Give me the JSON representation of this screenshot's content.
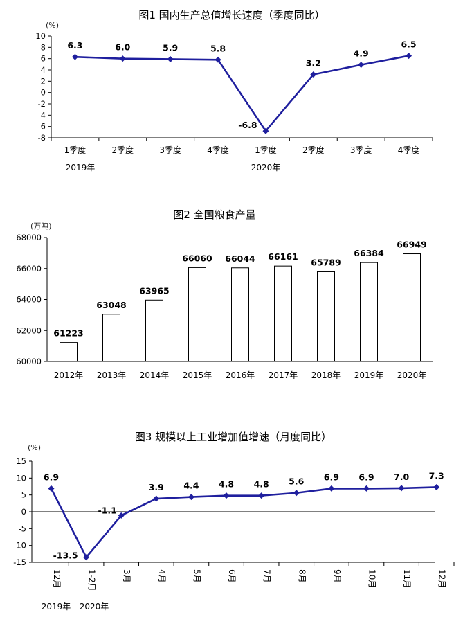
{
  "chart_data": [
    {
      "type": "line",
      "title": "图1   国内生产总值增长速度（季度同比）",
      "unit": "(%)",
      "categories": [
        "1季度",
        "2季度",
        "3季度",
        "4季度",
        "1季度",
        "2季度",
        "3季度",
        "4季度"
      ],
      "year_labels": [
        "2019年",
        "2020年"
      ],
      "values": [
        6.3,
        6.0,
        5.9,
        5.8,
        -6.8,
        3.2,
        4.9,
        6.5
      ],
      "value_labels": [
        "6.3",
        "6.0",
        "5.9",
        "5.8",
        "-6.8",
        "3.2",
        "4.9",
        "6.5"
      ],
      "ylim": [
        -8,
        10
      ],
      "yticks": [
        10,
        8,
        6,
        4,
        2,
        0,
        -2,
        -4,
        -6,
        -8
      ],
      "color": "#1f1f9e"
    },
    {
      "type": "bar",
      "title": "图2   全国粮食产量",
      "unit": "(万吨)",
      "categories": [
        "2012年",
        "2013年",
        "2014年",
        "2015年",
        "2016年",
        "2017年",
        "2018年",
        "2019年",
        "2020年"
      ],
      "values": [
        61223,
        63048,
        63965,
        66060,
        66044,
        66161,
        65789,
        66384,
        66949
      ],
      "value_labels": [
        "61223",
        "63048",
        "63965",
        "66060",
        "66044",
        "66161",
        "65789",
        "66384",
        "66949"
      ],
      "ylim": [
        60000,
        68000
      ],
      "yticks": [
        68000,
        66000,
        64000,
        62000,
        60000
      ]
    },
    {
      "type": "line",
      "title": "图3   规模以上工业增加值增速（月度同比）",
      "unit": "(%)",
      "categories": [
        "12月",
        "1-2月",
        "3月",
        "4月",
        "5月",
        "6月",
        "7月",
        "8月",
        "9月",
        "10月",
        "11月",
        "12月"
      ],
      "year_labels": [
        "2019年",
        "2020年"
      ],
      "values": [
        6.9,
        -13.5,
        -1.1,
        3.9,
        4.4,
        4.8,
        4.8,
        5.6,
        6.9,
        6.9,
        7.0,
        7.3
      ],
      "value_labels": [
        "6.9",
        "-13.5",
        "-1.1",
        "3.9",
        "4.4",
        "4.8",
        "4.8",
        "5.6",
        "6.9",
        "6.9",
        "7.0",
        "7.3"
      ],
      "ylim": [
        -15,
        15
      ],
      "yticks": [
        15,
        10,
        5,
        0,
        -5,
        -10,
        -15
      ],
      "color": "#1f1f9e"
    }
  ]
}
